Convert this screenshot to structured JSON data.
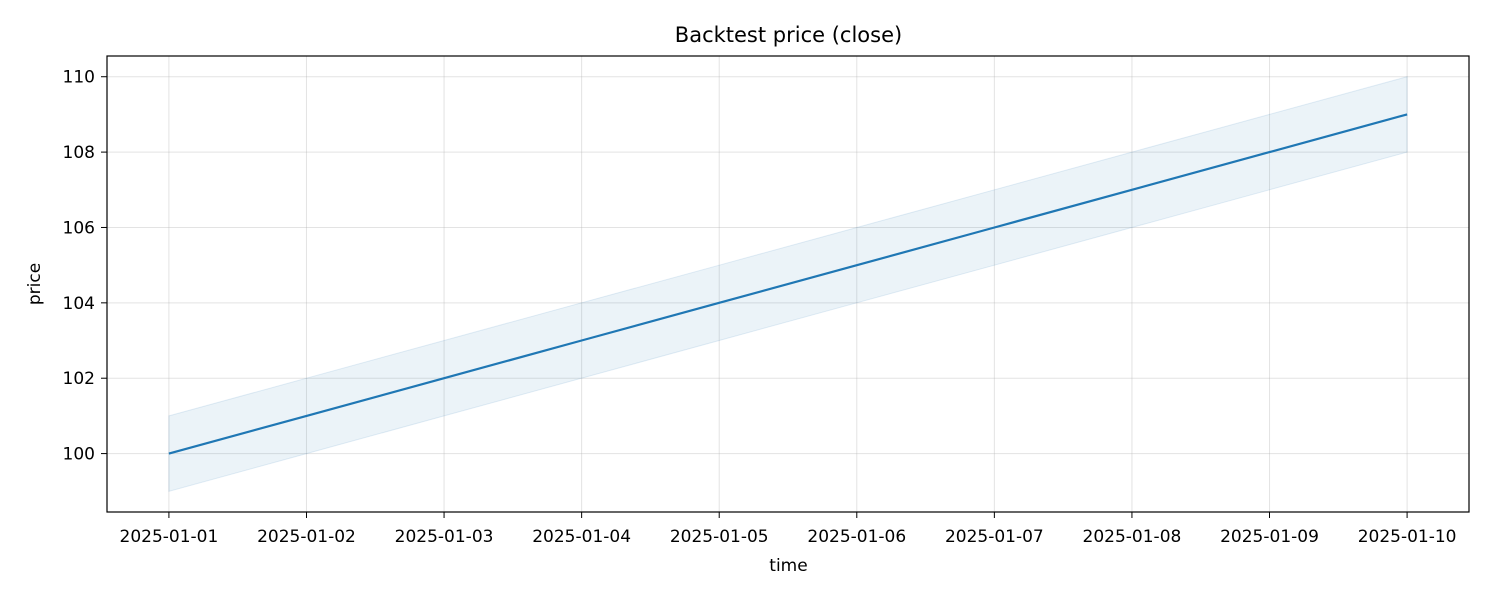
{
  "chart_data": {
    "type": "line",
    "title": "Backtest price (close)",
    "xlabel": "time",
    "ylabel": "price",
    "x": [
      "2025-01-01",
      "2025-01-02",
      "2025-01-03",
      "2025-01-04",
      "2025-01-05",
      "2025-01-06",
      "2025-01-07",
      "2025-01-08",
      "2025-01-09",
      "2025-01-10"
    ],
    "series": [
      {
        "values": [
          100,
          101,
          102,
          103,
          104,
          105,
          106,
          107,
          108,
          109
        ],
        "band_low": [
          99,
          100,
          101,
          102,
          103,
          104,
          105,
          106,
          107,
          108
        ],
        "band_high": [
          101,
          102,
          103,
          104,
          105,
          106,
          107,
          108,
          109,
          110
        ],
        "color": "#1f77b4",
        "band_color": "#1f77b4"
      }
    ],
    "xticks": [
      "2025-01-01",
      "2025-01-02",
      "2025-01-03",
      "2025-01-04",
      "2025-01-05",
      "2025-01-06",
      "2025-01-07",
      "2025-01-08",
      "2025-01-09",
      "2025-01-10"
    ],
    "yticks": [
      100,
      102,
      104,
      106,
      108,
      110
    ],
    "ylim": [
      98.45,
      110.55
    ],
    "xlim": [
      "2024-12-31T13:12",
      "2025-01-10T10:48"
    ],
    "grid": true
  }
}
